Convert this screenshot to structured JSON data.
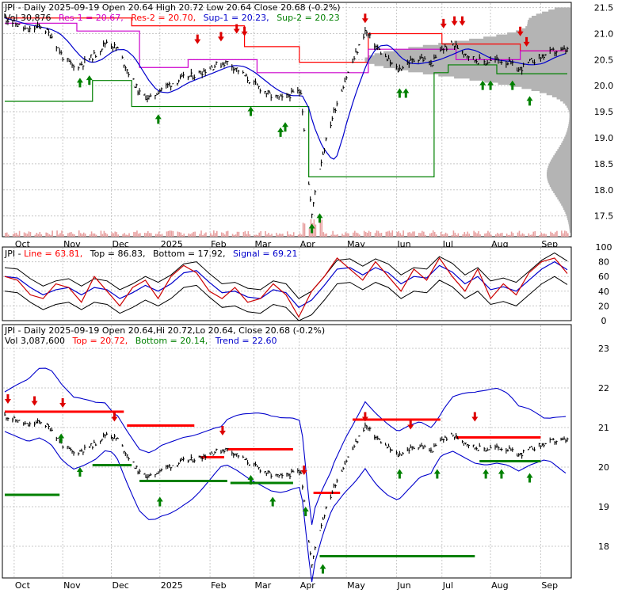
{
  "colors": {
    "background": "#ffffff",
    "panel_border": "#000000",
    "grid": "#c8c8c8",
    "price": "#000000",
    "res": "#ff0000",
    "sup": "#008000",
    "magenta": "#cc00cc",
    "blue": "#0000cc",
    "volume_profile": "#b4b4b4",
    "volume_bars": "#e8a0a0",
    "up_arrow": "#008000",
    "down_arrow": "#dd0000",
    "rsi_line": "#cc0000",
    "rsi_signal": "#0000cc",
    "rsi_band": "#000000"
  },
  "panel1": {
    "header_line1": "JPI - Daily 2025-09-19 Open 20.64  High 20.72  Low 20.64  Close 20.68 (-0.2%)",
    "header_vol": "Vol 30,876",
    "header_res1": "Res-1 = 20.67,",
    "header_res2": "Res-2 = 20.70,",
    "header_sup1": "Sup-1 = 20.23,",
    "header_sup2": "Sup-2 = 20.23"
  },
  "panel2": {
    "header_prefix": "JPI - ",
    "header_line": "Line = 63.81,",
    "header_top": "Top = 86.83,",
    "header_bottom": "Bottom = 17.92,",
    "header_signal": "Signal = 69.21"
  },
  "panel3": {
    "header_line1": "JPI - Daily 2025-09-19 Open 20.64,Hi 20.72,Lo 20.64, Close 20.68 (-0.2%)",
    "header_vol": "Vol 3,087,600",
    "header_top": "Top = 20.72,",
    "header_bottom": "Bottom = 20.14,",
    "header_trend": "Trend = 22.60"
  },
  "chart_data": [
    {
      "type": "candlestick",
      "ticker": "JPI",
      "x_labels": [
        "Oct",
        "Nov",
        "Dec",
        "2025",
        "Feb",
        "Mar",
        "Apr",
        "May",
        "Jun",
        "Jul",
        "Aug",
        "Sep"
      ],
      "y_ticks": [
        "21.5",
        "21.0",
        "20.5",
        "20.0",
        "19.5",
        "19.0",
        "18.5",
        "18.0",
        "17.5"
      ],
      "ylim": [
        17.1,
        21.6
      ],
      "close_series": [
        {
          "date": "2024-09-25",
          "close": 21.3
        },
        {
          "date": "2024-10-01",
          "close": 21.2
        },
        {
          "date": "2024-10-10",
          "close": 21.05
        },
        {
          "date": "2024-10-18",
          "close": 21.15
        },
        {
          "date": "2024-10-25",
          "close": 20.95
        },
        {
          "date": "2024-11-01",
          "close": 20.55
        },
        {
          "date": "2024-11-08",
          "close": 20.35
        },
        {
          "date": "2024-11-15",
          "close": 20.45
        },
        {
          "date": "2024-11-22",
          "close": 20.6
        },
        {
          "date": "2024-11-29",
          "close": 20.85
        },
        {
          "date": "2024-12-06",
          "close": 20.7
        },
        {
          "date": "2024-12-13",
          "close": 20.25
        },
        {
          "date": "2024-12-20",
          "close": 19.85
        },
        {
          "date": "2024-12-27",
          "close": 19.75
        },
        {
          "date": "2025-01-03",
          "close": 19.95
        },
        {
          "date": "2025-01-10",
          "close": 20.05
        },
        {
          "date": "2025-01-17",
          "close": 20.15
        },
        {
          "date": "2025-01-24",
          "close": 20.2
        },
        {
          "date": "2025-01-31",
          "close": 20.3
        },
        {
          "date": "2025-02-07",
          "close": 20.4
        },
        {
          "date": "2025-02-14",
          "close": 20.45
        },
        {
          "date": "2025-02-21",
          "close": 20.3
        },
        {
          "date": "2025-02-28",
          "close": 20.1
        },
        {
          "date": "2025-03-07",
          "close": 19.95
        },
        {
          "date": "2025-03-14",
          "close": 19.8
        },
        {
          "date": "2025-03-21",
          "close": 19.75
        },
        {
          "date": "2025-03-28",
          "close": 19.85
        },
        {
          "date": "2025-04-02",
          "close": 19.9
        },
        {
          "date": "2025-04-07",
          "close": 18.1
        },
        {
          "date": "2025-04-09",
          "close": 17.5
        },
        {
          "date": "2025-04-11",
          "close": 18.0
        },
        {
          "date": "2025-04-16",
          "close": 18.7
        },
        {
          "date": "2025-04-23",
          "close": 19.5
        },
        {
          "date": "2025-04-30",
          "close": 20.1
        },
        {
          "date": "2025-05-07",
          "close": 20.6
        },
        {
          "date": "2025-05-13",
          "close": 21.05
        },
        {
          "date": "2025-05-20",
          "close": 20.75
        },
        {
          "date": "2025-05-27",
          "close": 20.5
        },
        {
          "date": "2025-06-03",
          "close": 20.3
        },
        {
          "date": "2025-06-10",
          "close": 20.45
        },
        {
          "date": "2025-06-17",
          "close": 20.55
        },
        {
          "date": "2025-06-24",
          "close": 20.4
        },
        {
          "date": "2025-07-01",
          "close": 20.7
        },
        {
          "date": "2025-07-08",
          "close": 20.8
        },
        {
          "date": "2025-07-15",
          "close": 20.65
        },
        {
          "date": "2025-07-22",
          "close": 20.5
        },
        {
          "date": "2025-07-29",
          "close": 20.45
        },
        {
          "date": "2025-08-05",
          "close": 20.5
        },
        {
          "date": "2025-08-12",
          "close": 20.45
        },
        {
          "date": "2025-08-19",
          "close": 20.3
        },
        {
          "date": "2025-08-26",
          "close": 20.45
        },
        {
          "date": "2025-09-02",
          "close": 20.55
        },
        {
          "date": "2025-09-09",
          "close": 20.65
        },
        {
          "date": "2025-09-19",
          "close": 20.68
        }
      ]
    },
    {
      "type": "line",
      "y_ticks": [
        "100",
        "80",
        "60",
        "40",
        "20",
        "0"
      ],
      "ylim": [
        0,
        100
      ],
      "series_values": [
        60,
        55,
        35,
        30,
        50,
        45,
        25,
        60,
        40,
        20,
        45,
        55,
        30,
        60,
        75,
        65,
        40,
        30,
        45,
        25,
        30,
        50,
        35,
        5,
        40,
        60,
        85,
        70,
        55,
        80,
        60,
        40,
        70,
        55,
        85,
        60,
        40,
        70,
        30,
        50,
        35,
        65,
        80,
        85,
        64
      ],
      "signal_values": [
        60,
        58,
        45,
        35,
        42,
        45,
        35,
        45,
        42,
        30,
        38,
        48,
        40,
        50,
        65,
        68,
        52,
        38,
        40,
        32,
        30,
        42,
        38,
        18,
        28,
        48,
        70,
        72,
        62,
        72,
        65,
        50,
        60,
        58,
        75,
        66,
        50,
        60,
        42,
        46,
        40,
        55,
        70,
        80,
        69
      ],
      "top_value": 86.83,
      "bottom_value": 17.92
    },
    {
      "type": "candlestick",
      "y_ticks": [
        "23",
        "22",
        "21",
        "20",
        "19",
        "18"
      ],
      "ylim": [
        17.2,
        23.6
      ],
      "x_labels": [
        "Oct",
        "Nov",
        "Dec",
        "2025",
        "Feb",
        "Mar",
        "Apr",
        "May",
        "Jun",
        "Jul",
        "Aug",
        "Sep"
      ]
    }
  ]
}
